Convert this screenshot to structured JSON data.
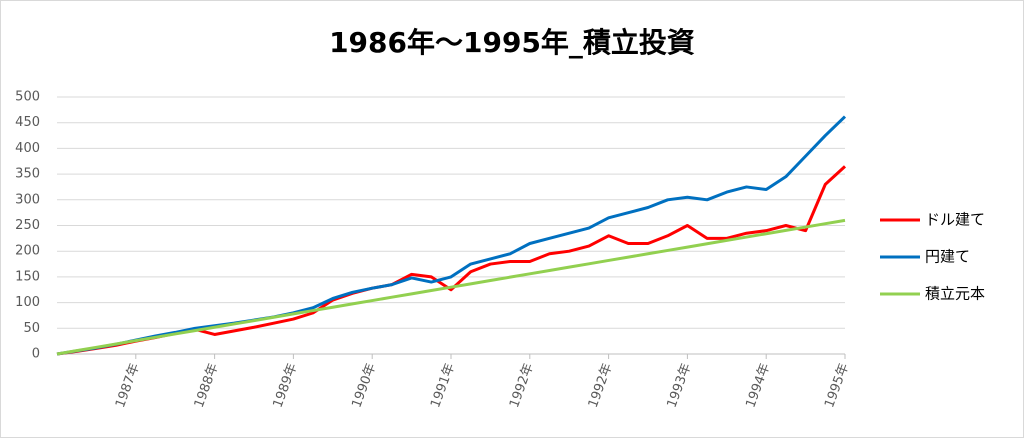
{
  "chart_data": {
    "type": "line",
    "title": "1986年～1995年_積立投資",
    "categories": [
      null,
      null,
      null,
      null,
      "1987年",
      null,
      null,
      null,
      "1988年",
      null,
      null,
      null,
      "1989年",
      null,
      null,
      null,
      "1990年",
      null,
      null,
      null,
      "1991年",
      null,
      null,
      null,
      "1992年",
      null,
      null,
      null,
      "1992年",
      null,
      null,
      null,
      "1993年",
      null,
      null,
      null,
      "1994年",
      null,
      null,
      null,
      "1995年"
    ],
    "series": [
      {
        "name": "ドル建て",
        "color": "#ff0000",
        "values": [
          0,
          5,
          11,
          17,
          25,
          32,
          40,
          48,
          38,
          45,
          52,
          60,
          68,
          80,
          105,
          118,
          128,
          135,
          155,
          150,
          125,
          160,
          175,
          180,
          180,
          195,
          200,
          210,
          230,
          215,
          215,
          230,
          250,
          225,
          225,
          235,
          240,
          250,
          240,
          330,
          365
        ]
      },
      {
        "name": "円建て",
        "color": "#0070c0",
        "values": [
          0,
          6,
          12,
          19,
          27,
          35,
          42,
          50,
          55,
          60,
          66,
          72,
          80,
          90,
          108,
          120,
          128,
          135,
          148,
          140,
          150,
          175,
          185,
          195,
          215,
          225,
          235,
          245,
          265,
          275,
          285,
          300,
          305,
          300,
          315,
          325,
          320,
          345,
          385,
          425,
          462
        ]
      },
      {
        "name": "積立元本",
        "color": "#92d050",
        "values": [
          0,
          6.5,
          13,
          19.5,
          26,
          32.5,
          39,
          45.5,
          52,
          58.5,
          65,
          71.5,
          78,
          84.5,
          91,
          97.5,
          104,
          110.5,
          117,
          123.5,
          130,
          136.5,
          143,
          149.5,
          156,
          162.5,
          169,
          175.5,
          182,
          188.5,
          195,
          201.5,
          208,
          214.5,
          221,
          227.5,
          234,
          240.5,
          247,
          253.5,
          260
        ]
      }
    ],
    "ylim": [
      0,
      500
    ],
    "yticks": [
      0,
      50,
      100,
      150,
      200,
      250,
      300,
      350,
      400,
      450,
      500
    ],
    "grid": true,
    "legend": "right"
  }
}
